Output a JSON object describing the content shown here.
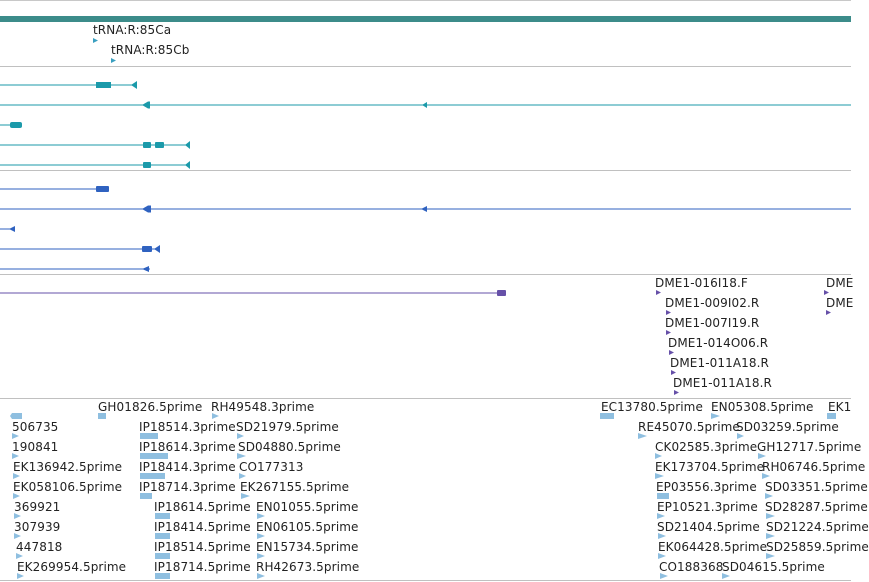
{
  "colors": {
    "ruler": "#3c8c8a",
    "trna_arrow": "#3a9fc0",
    "teal_transcript": "#1b9aaa",
    "blue_transcript": "#2f62c0",
    "purple_feature": "#6650a8",
    "est_feature": "#8fbfe0"
  },
  "track_trna": {
    "labels": [
      "tRNA:R:85Ca",
      "tRNA:R:85Cb"
    ]
  },
  "track_clones": {
    "labels": [
      "DME1-016I18.F",
      "DME",
      "DME1-009I02.R",
      "DME",
      "DME1-007I19.R",
      "DME1-014O06.R",
      "DME1-011A18.R",
      "DME1-011A18.R"
    ]
  },
  "track_est": {
    "labels": [
      "GH01826.5prime",
      "RH49548.3prime",
      "EC13780.5prime",
      "EN05308.5prime",
      "EK1",
      "506735",
      "IP18514.3prime",
      "SD21979.5prime",
      "RE45070.5prime",
      "SD03259.5prime",
      "190841",
      "IP18614.3prime",
      "SD04880.5prime",
      "CK02585.3prime",
      "GH12717.5prime",
      "EK136942.5prime",
      "IP18414.3prime",
      "CO177313",
      "EK173704.5prime",
      "RH06746.5prime",
      "EK058106.5prime",
      "IP18714.3prime",
      "EK267155.5prime",
      "EP03556.3prime",
      "SD03351.5prime",
      "369921",
      "IP18614.5prime",
      "EN01055.5prime",
      "EP10521.3prime",
      "SD28287.5prime",
      "307939",
      "IP18414.5prime",
      "EN06105.5prime",
      "SD21404.5prime",
      "SD21224.5prime",
      "447818",
      "IP18514.5prime",
      "EN15734.5prime",
      "EK064428.5prime",
      "SD25859.5prime",
      "EK269954.5prime",
      "IP18714.5prime",
      "RH42673.5prime",
      "CO188368",
      "SD04615.5prime"
    ]
  }
}
